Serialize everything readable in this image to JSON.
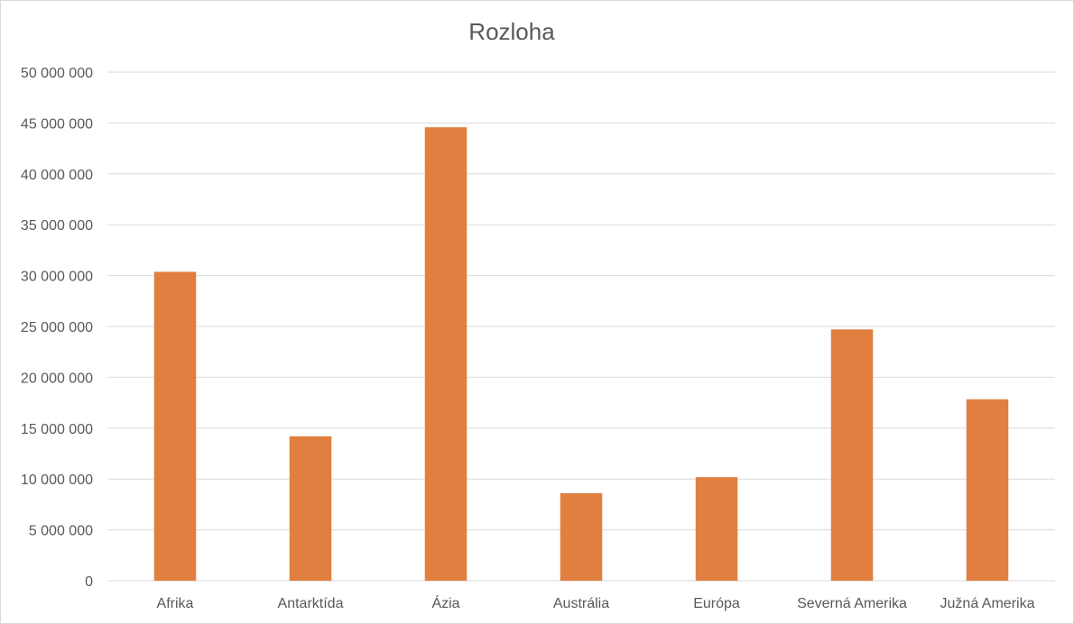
{
  "chart_data": {
    "type": "bar",
    "title": "Rozloha",
    "xlabel": "",
    "ylabel": "",
    "categories": [
      "Afrika",
      "Antarktída",
      "Ázia",
      "Austrália",
      "Európa",
      "Severná Amerika",
      "Južná Amerika"
    ],
    "values": [
      30370000,
      14200000,
      44579000,
      8600000,
      10180000,
      24709000,
      17840000
    ],
    "ylim": [
      0,
      50000000
    ],
    "yticks": [
      0,
      5000000,
      10000000,
      15000000,
      20000000,
      25000000,
      30000000,
      35000000,
      40000000,
      45000000,
      50000000
    ],
    "ytick_labels": [
      "0",
      "5 000 000",
      "10 000 000",
      "15 000 000",
      "20 000 000",
      "25 000 000",
      "30 000 000",
      "35 000 000",
      "40 000 000",
      "45 000 000",
      "50 000 000"
    ],
    "grid": true,
    "legend": "none",
    "bar_color": "#E07F3F",
    "grid_color": "#D9D9D9",
    "text_color": "#595959"
  }
}
